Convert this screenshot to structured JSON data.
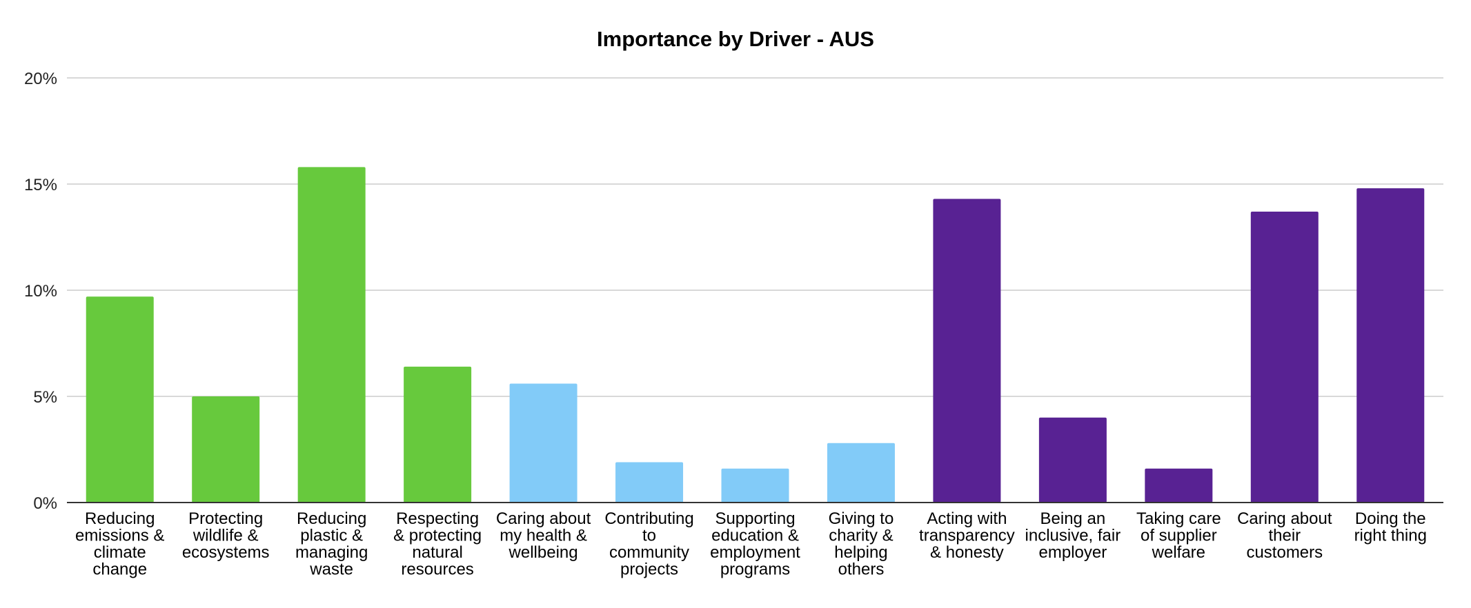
{
  "chart_data": {
    "type": "bar",
    "title": "Importance by Driver - AUS",
    "xlabel": "",
    "ylabel": "",
    "ylim": [
      0,
      20
    ],
    "y_ticks": [
      "0%",
      "5%",
      "10%",
      "15%",
      "20%"
    ],
    "y_tick_values": [
      0,
      5,
      10,
      15,
      20
    ],
    "grid": true,
    "legend": "none",
    "categories": [
      [
        "Reducing",
        "emissions &",
        "climate",
        "change"
      ],
      [
        "Protecting",
        "wildlife &",
        "ecosystems"
      ],
      [
        "Reducing",
        "plastic &",
        "managing",
        "waste"
      ],
      [
        "Respecting",
        "& protecting",
        "natural",
        "resources"
      ],
      [
        "Caring about",
        "my health &",
        "wellbeing"
      ],
      [
        "Contributing",
        "to",
        "community",
        "projects"
      ],
      [
        "Supporting",
        "education &",
        "employment",
        "programs"
      ],
      [
        "Giving to",
        "charity &",
        "helping",
        "others"
      ],
      [
        "Acting with",
        "transparency",
        "& honesty"
      ],
      [
        "Being an",
        "inclusive, fair",
        "employer"
      ],
      [
        "Taking care",
        "of supplier",
        "welfare"
      ],
      [
        "Caring about",
        "their",
        "customers"
      ],
      [
        "Doing the",
        "right thing"
      ]
    ],
    "values": [
      9.7,
      5.0,
      15.8,
      6.4,
      5.6,
      1.9,
      1.6,
      2.8,
      14.3,
      4.0,
      1.6,
      13.7,
      14.8
    ],
    "bar_colors": [
      "#67c93d",
      "#67c93d",
      "#67c93d",
      "#67c93d",
      "#82cbf8",
      "#82cbf8",
      "#82cbf8",
      "#82cbf8",
      "#582293",
      "#582293",
      "#582293",
      "#582293",
      "#582293"
    ],
    "colors": {
      "environment": "#67c93d",
      "community": "#82cbf8",
      "conduct": "#582293",
      "grid": "#cccccc",
      "axis": "#333333"
    }
  }
}
